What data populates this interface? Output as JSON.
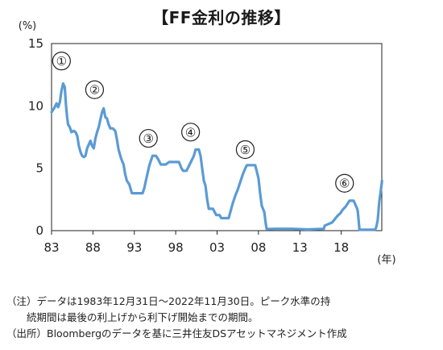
{
  "title": "【FF金利の推移】",
  "notes": [
    "（注）データは1983年12月31日～2022年11月30日。ピーク水準の持",
    "　　続期間は最後の利上げから利下げ開始までの期間。",
    "（出所）Bloombergのデータを基に三井住友DSアセットマネジメント作成"
  ],
  "colors": {
    "line": "#5b9bd5",
    "frame": "#222222"
  },
  "chart_data": {
    "type": "line",
    "ylabel": "(%)",
    "xlabel": "(年)",
    "ylim": [
      0,
      15
    ],
    "xlim": [
      1983,
      2022.9
    ],
    "yticks": [
      0,
      5,
      10,
      15
    ],
    "xtick_labels": [
      "83",
      "88",
      "93",
      "98",
      "03",
      "08",
      "13",
      "18"
    ],
    "xtick_values": [
      1983,
      1988,
      1993,
      1998,
      2003,
      2008,
      2013,
      2018
    ],
    "grid": false,
    "peaks": [
      {
        "label": "①",
        "x": 1984.2,
        "y": 13.6
      },
      {
        "label": "②",
        "x": 1988.2,
        "y": 11.3
      },
      {
        "label": "③",
        "x": 1994.7,
        "y": 7.4
      },
      {
        "label": "④",
        "x": 1999.8,
        "y": 7.9
      },
      {
        "label": "⑤",
        "x": 2006.4,
        "y": 6.5
      },
      {
        "label": "⑥",
        "x": 2018.4,
        "y": 3.8
      }
    ],
    "series": [
      {
        "values": [
          [
            1983.0,
            9.5
          ],
          [
            1983.3,
            9.8
          ],
          [
            1983.6,
            10.2
          ],
          [
            1983.8,
            9.9
          ],
          [
            1984.0,
            10.3
          ],
          [
            1984.2,
            11.2
          ],
          [
            1984.4,
            11.8
          ],
          [
            1984.6,
            11.5
          ],
          [
            1984.75,
            10.0
          ],
          [
            1984.9,
            9.0
          ],
          [
            1985.0,
            8.5
          ],
          [
            1985.2,
            8.3
          ],
          [
            1985.4,
            7.9
          ],
          [
            1985.7,
            8.0
          ],
          [
            1985.9,
            7.9
          ],
          [
            1986.1,
            7.6
          ],
          [
            1986.3,
            6.8
          ],
          [
            1986.5,
            6.3
          ],
          [
            1986.7,
            6.0
          ],
          [
            1986.9,
            5.9
          ],
          [
            1987.1,
            6.0
          ],
          [
            1987.3,
            6.6
          ],
          [
            1987.5,
            6.9
          ],
          [
            1987.7,
            7.2
          ],
          [
            1987.9,
            6.8
          ],
          [
            1988.1,
            6.6
          ],
          [
            1988.3,
            7.4
          ],
          [
            1988.5,
            7.9
          ],
          [
            1988.7,
            8.3
          ],
          [
            1988.9,
            8.9
          ],
          [
            1989.1,
            9.5
          ],
          [
            1989.3,
            9.8
          ],
          [
            1989.5,
            9.1
          ],
          [
            1989.7,
            9.0
          ],
          [
            1989.9,
            8.5
          ],
          [
            1990.1,
            8.2
          ],
          [
            1990.4,
            8.2
          ],
          [
            1990.7,
            8.0
          ],
          [
            1990.9,
            7.3
          ],
          [
            1991.1,
            6.5
          ],
          [
            1991.4,
            5.8
          ],
          [
            1991.7,
            5.3
          ],
          [
            1991.9,
            4.5
          ],
          [
            1992.1,
            4.0
          ],
          [
            1992.4,
            3.7
          ],
          [
            1992.7,
            3.0
          ],
          [
            1993.0,
            3.0
          ],
          [
            1993.5,
            3.0
          ],
          [
            1994.0,
            3.0
          ],
          [
            1994.2,
            3.4
          ],
          [
            1994.4,
            4.0
          ],
          [
            1994.6,
            4.6
          ],
          [
            1994.8,
            5.2
          ],
          [
            1995.0,
            5.6
          ],
          [
            1995.2,
            6.0
          ],
          [
            1995.6,
            6.0
          ],
          [
            1995.9,
            5.7
          ],
          [
            1996.2,
            5.3
          ],
          [
            1996.8,
            5.3
          ],
          [
            1997.2,
            5.5
          ],
          [
            1997.6,
            5.5
          ],
          [
            1997.9,
            5.5
          ],
          [
            1998.4,
            5.5
          ],
          [
            1998.7,
            5.0
          ],
          [
            1998.9,
            4.8
          ],
          [
            1999.3,
            4.8
          ],
          [
            1999.6,
            5.2
          ],
          [
            1999.9,
            5.6
          ],
          [
            2000.2,
            6.0
          ],
          [
            2000.4,
            6.5
          ],
          [
            2000.8,
            6.5
          ],
          [
            2001.0,
            6.0
          ],
          [
            2001.2,
            5.0
          ],
          [
            2001.4,
            4.0
          ],
          [
            2001.6,
            3.6
          ],
          [
            2001.8,
            2.5
          ],
          [
            2002.0,
            1.75
          ],
          [
            2002.5,
            1.75
          ],
          [
            2002.9,
            1.25
          ],
          [
            2003.3,
            1.25
          ],
          [
            2003.5,
            1.0
          ],
          [
            2004.0,
            1.0
          ],
          [
            2004.4,
            1.0
          ],
          [
            2004.6,
            1.5
          ],
          [
            2004.9,
            2.2
          ],
          [
            2005.2,
            2.8
          ],
          [
            2005.5,
            3.3
          ],
          [
            2005.8,
            3.9
          ],
          [
            2006.1,
            4.5
          ],
          [
            2006.4,
            5.0
          ],
          [
            2006.6,
            5.25
          ],
          [
            2007.2,
            5.25
          ],
          [
            2007.6,
            5.25
          ],
          [
            2007.8,
            4.75
          ],
          [
            2008.0,
            4.2
          ],
          [
            2008.2,
            3.0
          ],
          [
            2008.4,
            2.0
          ],
          [
            2008.7,
            1.5
          ],
          [
            2008.9,
            0.5
          ],
          [
            2009.0,
            0.12
          ],
          [
            2010.0,
            0.15
          ],
          [
            2012.0,
            0.15
          ],
          [
            2014.0,
            0.1
          ],
          [
            2015.9,
            0.15
          ],
          [
            2016.0,
            0.4
          ],
          [
            2016.9,
            0.65
          ],
          [
            2017.2,
            0.9
          ],
          [
            2017.5,
            1.15
          ],
          [
            2017.9,
            1.4
          ],
          [
            2018.2,
            1.7
          ],
          [
            2018.5,
            1.9
          ],
          [
            2018.8,
            2.2
          ],
          [
            2019.0,
            2.4
          ],
          [
            2019.5,
            2.4
          ],
          [
            2019.7,
            2.1
          ],
          [
            2019.9,
            1.8
          ],
          [
            2020.0,
            1.55
          ],
          [
            2020.2,
            0.08
          ],
          [
            2021.0,
            0.08
          ],
          [
            2021.8,
            0.08
          ],
          [
            2022.1,
            0.08
          ],
          [
            2022.25,
            0.33
          ],
          [
            2022.4,
            0.83
          ],
          [
            2022.5,
            1.58
          ],
          [
            2022.6,
            2.33
          ],
          [
            2022.75,
            3.08
          ],
          [
            2022.9,
            3.83
          ],
          [
            2022.92,
            4.0
          ]
        ]
      }
    ]
  }
}
